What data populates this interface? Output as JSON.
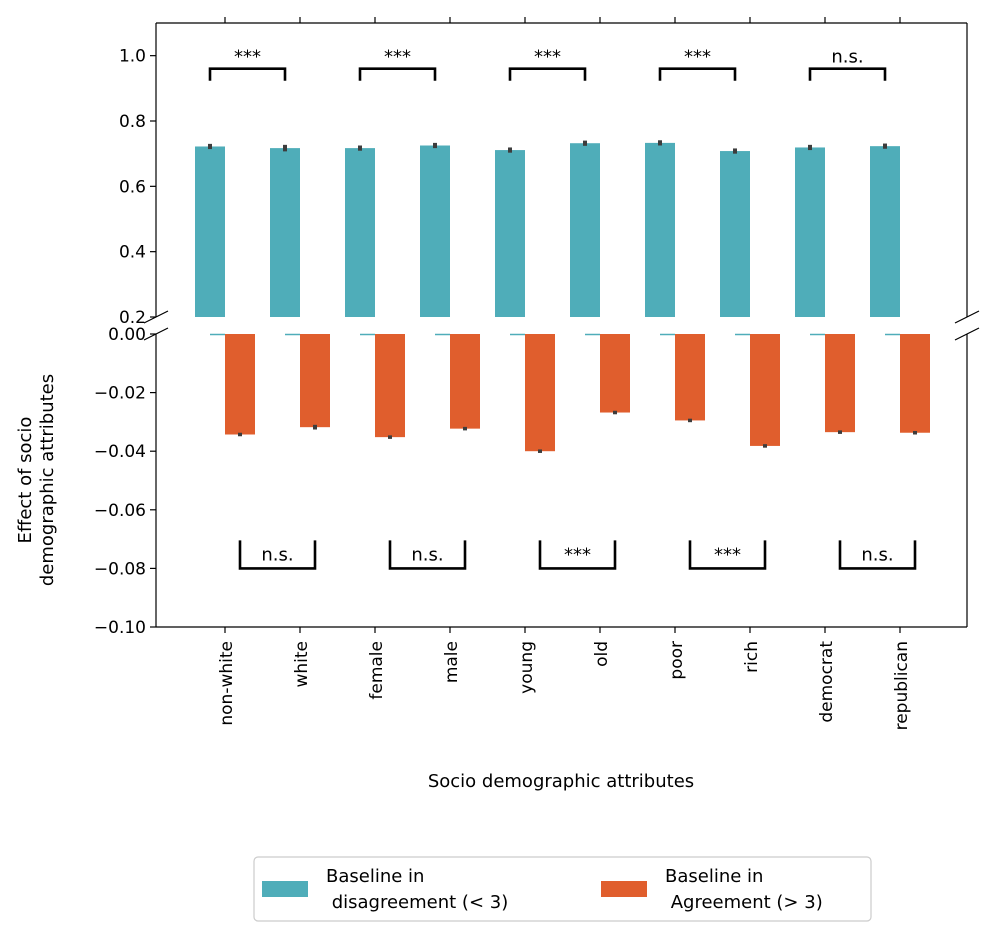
{
  "chart_data": {
    "type": "bar",
    "title": "",
    "xlabel": "Socio demographic attributes",
    "ylabel": [
      "Effect of socio",
      "demographic attributes"
    ],
    "categories": [
      "non-white",
      "white",
      "female",
      "male",
      "young",
      "old",
      "poor",
      "rich",
      "democrat",
      "republican"
    ],
    "series": [
      {
        "name": "Baseline in disagreement (< 3)",
        "legend_lines": [
          "Baseline in",
          " disagreement (< 3)"
        ],
        "color": "#4fadb9",
        "values": [
          0.722,
          0.717,
          0.717,
          0.725,
          0.711,
          0.732,
          0.733,
          0.708,
          0.719,
          0.723
        ],
        "errors": [
          0.008,
          0.01,
          0.008,
          0.008,
          0.008,
          0.008,
          0.008,
          0.008,
          0.008,
          0.008
        ]
      },
      {
        "name": "Baseline in Agreement (> 3)",
        "legend_lines": [
          "Baseline in",
          " Agreement (> 3)"
        ],
        "color": "#e05e2d",
        "values": [
          -0.0343,
          -0.0318,
          -0.0352,
          -0.0323,
          -0.04,
          -0.0268,
          -0.0295,
          -0.0382,
          -0.0335,
          -0.0337
        ],
        "errors": [
          0.0006,
          0.0008,
          0.0006,
          0.0006,
          0.0006,
          0.0006,
          0.0006,
          0.0006,
          0.0006,
          0.0006
        ]
      }
    ],
    "upper_axis": {
      "ylim": [
        0.2,
        1.1
      ],
      "ticks": [
        0.2,
        0.4,
        0.6,
        0.8,
        1.0
      ],
      "tick_labels": [
        "0.2",
        "0.4",
        "0.6",
        "0.8",
        "1.0"
      ]
    },
    "lower_axis": {
      "ylim": [
        -0.1,
        0.0
      ],
      "ticks": [
        0.0,
        -0.02,
        -0.04,
        -0.06,
        -0.08,
        -0.1
      ],
      "tick_labels": [
        "0.00",
        "−0.02",
        "−0.04",
        "−0.06",
        "−0.08",
        "−0.10"
      ]
    },
    "significance_upper": [
      {
        "pair": [
          0,
          1
        ],
        "label": "***"
      },
      {
        "pair": [
          2,
          3
        ],
        "label": "***"
      },
      {
        "pair": [
          4,
          5
        ],
        "label": "***"
      },
      {
        "pair": [
          6,
          7
        ],
        "label": "***"
      },
      {
        "pair": [
          8,
          9
        ],
        "label": "n.s."
      }
    ],
    "significance_lower": [
      {
        "pair": [
          0,
          1
        ],
        "label": "n.s."
      },
      {
        "pair": [
          2,
          3
        ],
        "label": "n.s."
      },
      {
        "pair": [
          4,
          5
        ],
        "label": "***"
      },
      {
        "pair": [
          6,
          7
        ],
        "label": "***"
      },
      {
        "pair": [
          8,
          9
        ],
        "label": "n.s."
      }
    ],
    "significance_levels": {
      "upper": 0.96,
      "lower": -0.08
    },
    "legend_position": "bottom-center"
  }
}
